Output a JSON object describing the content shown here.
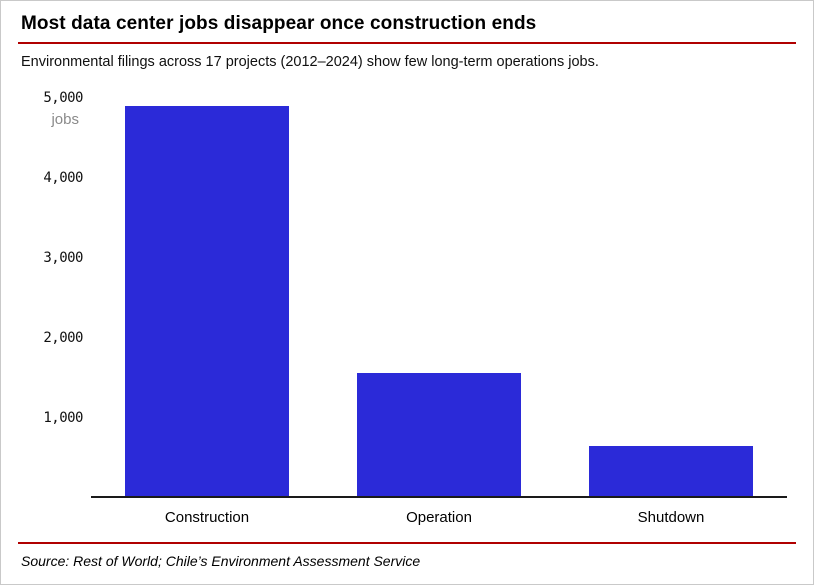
{
  "chart_data": {
    "type": "bar",
    "title": "Most data center jobs disappear once construction ends",
    "subtitle": "Environmental filings across 17 projects (2012–2024) show few long-term operations jobs.",
    "categories": [
      "Construction",
      "Operation",
      "Shutdown"
    ],
    "values": [
      4900,
      1550,
      630
    ],
    "ylabel": "jobs",
    "xlabel": "",
    "ylim": [
      0,
      5000
    ],
    "yticks": [
      1000,
      2000,
      3000,
      4000,
      5000
    ],
    "ytick_labels": [
      "1,000",
      "2,000",
      "3,000",
      "4,000",
      "5,000"
    ],
    "grid": false,
    "legend": false,
    "bar_color": "#2b2ad8"
  },
  "colors": {
    "bar": "#2b2ad8",
    "rule": "#b00000",
    "axis": "#1a1a1a",
    "unit_label": "#8a8a8a"
  },
  "source": "Source: Rest of World; Chile’s Environment Assessment Service"
}
